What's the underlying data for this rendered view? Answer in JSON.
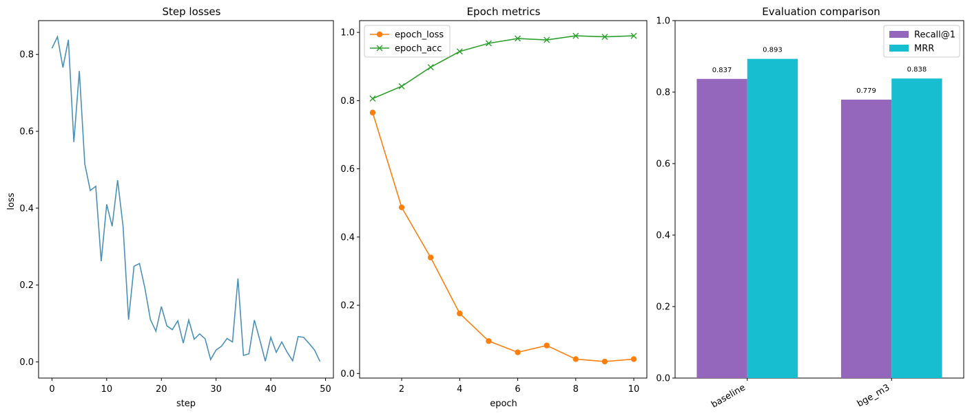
{
  "chart_data": [
    {
      "type": "line",
      "title": "Step losses",
      "xlabel": "step",
      "ylabel": "loss",
      "xlim": [
        -2.45,
        51.45
      ],
      "ylim": [
        -0.042,
        0.888
      ],
      "xticks": [
        0,
        10,
        20,
        30,
        40,
        50
      ],
      "yticks": [
        0.0,
        0.2,
        0.4,
        0.6,
        0.8
      ],
      "xtick_labels": [
        "0",
        "10",
        "20",
        "30",
        "40",
        "50"
      ],
      "ytick_labels": [
        "0.0",
        "0.2",
        "0.4",
        "0.6",
        "0.8"
      ],
      "color": "#4a90b8",
      "series": [
        {
          "x": [
            0,
            1,
            2,
            3,
            4,
            5,
            6,
            7,
            8,
            9,
            10,
            11,
            12,
            13,
            14,
            15,
            16,
            17,
            18,
            19,
            20,
            21,
            22,
            23,
            24,
            25,
            26,
            27,
            28,
            29,
            30,
            31,
            32,
            33,
            34,
            35,
            36,
            37,
            38,
            39,
            40,
            41,
            42,
            43,
            44,
            45,
            46,
            47,
            48,
            49
          ],
          "values": [
            0.816,
            0.846,
            0.766,
            0.838,
            0.572,
            0.757,
            0.515,
            0.446,
            0.457,
            0.262,
            0.41,
            0.353,
            0.473,
            0.352,
            0.11,
            0.249,
            0.256,
            0.191,
            0.11,
            0.08,
            0.144,
            0.094,
            0.084,
            0.107,
            0.049,
            0.109,
            0.059,
            0.073,
            0.06,
            0.006,
            0.031,
            0.041,
            0.061,
            0.052,
            0.217,
            0.017,
            0.021,
            0.109,
            0.057,
            0.002,
            0.064,
            0.025,
            0.052,
            0.025,
            0.003,
            0.066,
            0.064,
            0.048,
            0.031,
            0.001
          ]
        }
      ],
      "grid": false
    },
    {
      "type": "line",
      "title": "Epoch metrics",
      "xlabel": "epoch",
      "ylabel": "",
      "xlim": [
        0.55,
        10.45
      ],
      "ylim": [
        -0.0135,
        1.0345
      ],
      "xticks": [
        2,
        4,
        6,
        8,
        10
      ],
      "yticks": [
        0.0,
        0.2,
        0.4,
        0.6,
        0.8,
        1.0
      ],
      "xtick_labels": [
        "2",
        "4",
        "6",
        "8",
        "10"
      ],
      "ytick_labels": [
        "0.0",
        "0.2",
        "0.4",
        "0.6",
        "0.8",
        "1.0"
      ],
      "x": [
        1,
        2,
        3,
        4,
        5,
        6,
        7,
        8,
        9,
        10
      ],
      "series": [
        {
          "name": "epoch_loss",
          "color": "#ff7f0e",
          "marker": "circle",
          "values": [
            0.765,
            0.487,
            0.34,
            0.176,
            0.095,
            0.062,
            0.082,
            0.042,
            0.035,
            0.042
          ]
        },
        {
          "name": "epoch_acc",
          "color": "#2ca02c",
          "marker": "x",
          "values": [
            0.806,
            0.842,
            0.898,
            0.944,
            0.968,
            0.982,
            0.978,
            0.99,
            0.987,
            0.99
          ]
        }
      ],
      "legend": "top-left",
      "grid": false
    },
    {
      "type": "bar",
      "title": "Evaluation comparison",
      "xlabel": "",
      "ylabel": "",
      "categories": [
        "baseline",
        "bge_m3"
      ],
      "ylim": [
        0.0,
        1.0
      ],
      "yticks": [
        0.0,
        0.2,
        0.4,
        0.6,
        0.8,
        1.0
      ],
      "ytick_labels": [
        "0.0",
        "0.2",
        "0.4",
        "0.6",
        "0.8",
        "1.0"
      ],
      "series": [
        {
          "name": "Recall@1",
          "color": "#9467bd",
          "values": [
            0.837,
            0.779
          ],
          "labels": [
            "0.837",
            "0.779"
          ]
        },
        {
          "name": "MRR",
          "color": "#17becf",
          "values": [
            0.893,
            0.838
          ],
          "labels": [
            "0.893",
            "0.838"
          ]
        }
      ],
      "legend": "top-right",
      "grid": false
    }
  ]
}
